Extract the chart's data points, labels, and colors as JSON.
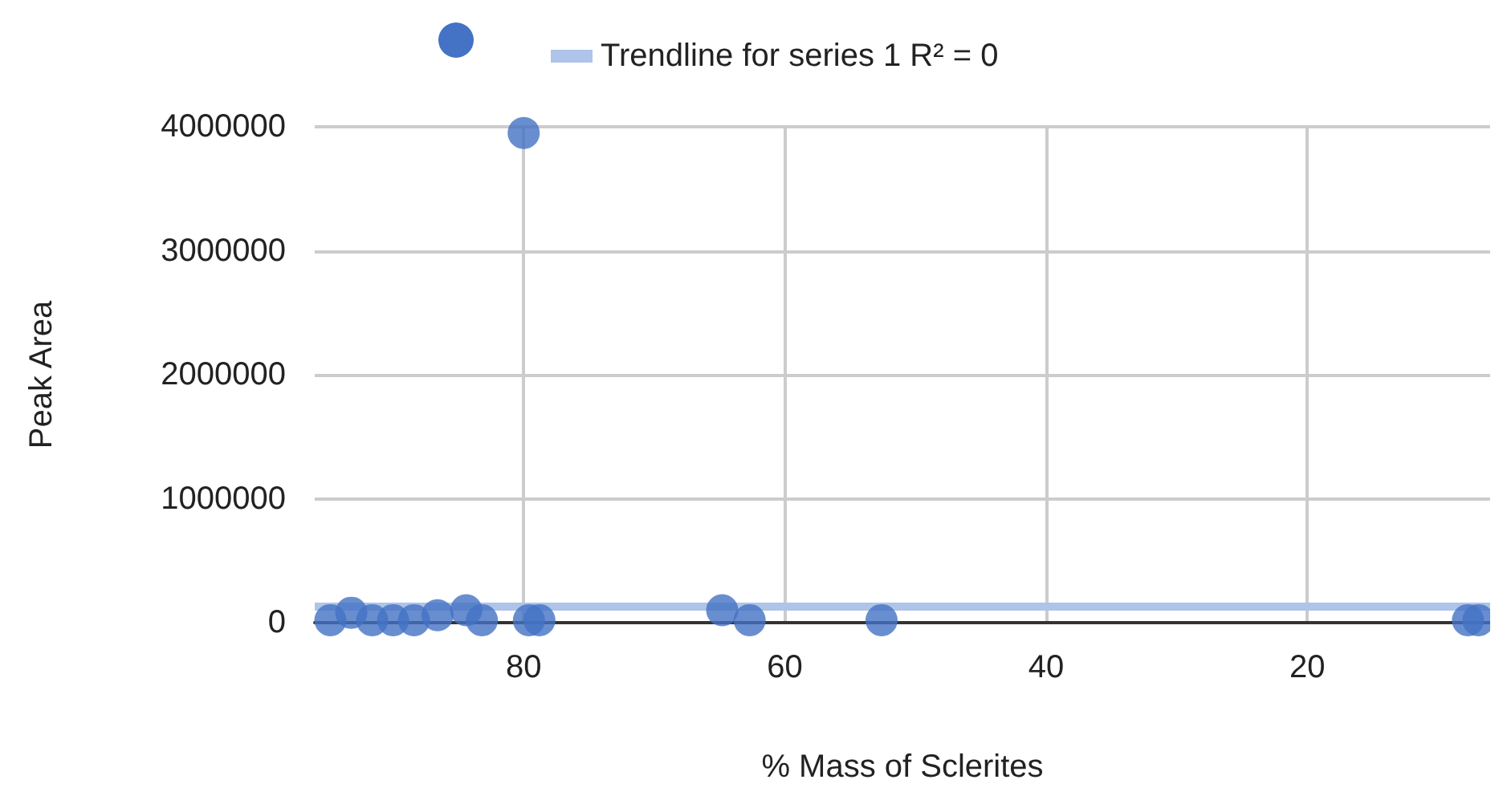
{
  "chart_data": {
    "type": "scatter",
    "xlabel": "% Mass of Sclerites",
    "ylabel": "Peak Area",
    "xlim": [
      96,
      6
    ],
    "xticks": [
      80,
      60,
      40,
      20
    ],
    "ylim": [
      0,
      4000000
    ],
    "yticks": [
      0,
      1000000,
      2000000,
      3000000,
      4000000
    ],
    "grid": true,
    "legend": "top",
    "marker": "circle",
    "series": [
      {
        "color": "#4472c4",
        "x": [
          94.8,
          93.2,
          91.6,
          90.0,
          88.4,
          86.6,
          84.4,
          83.2,
          80,
          79.6,
          78.8,
          64.8,
          62.7,
          52.6,
          7.7,
          6.9
        ],
        "values": [
          20000,
          80000,
          20000,
          20000,
          20000,
          60000,
          100000,
          20000,
          3950000,
          20000,
          20000,
          100000,
          20000,
          20000,
          20000,
          20000
        ]
      },
      {
        "type": "line",
        "name": "Trendline for series 1 R² = 0",
        "color": "#aec4e8",
        "x": [
          96,
          6
        ],
        "values": [
          130000,
          130000
        ],
        "marker": "none"
      }
    ]
  }
}
